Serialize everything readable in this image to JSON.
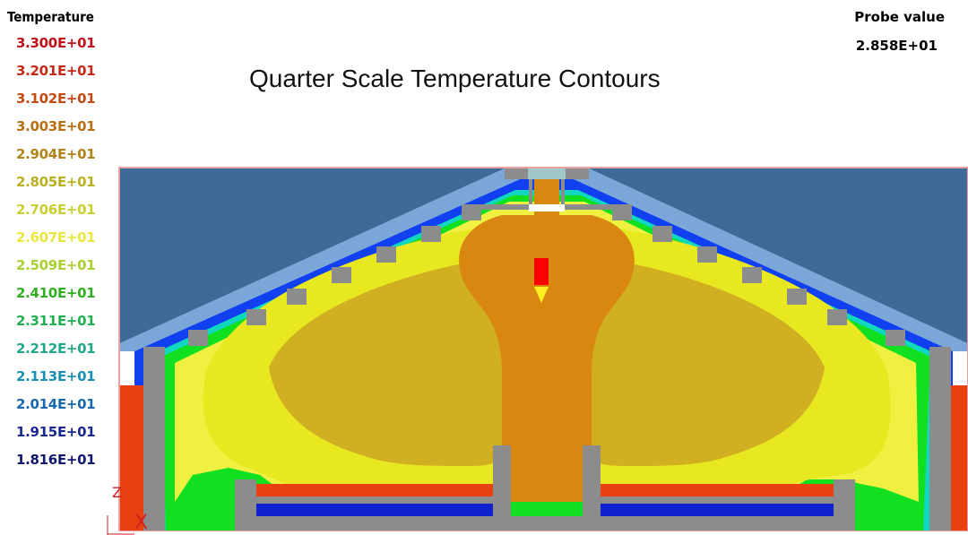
{
  "legend": {
    "title": "Temperature",
    "levels": [
      {
        "label": "3.300E+01",
        "color": "#c0101a"
      },
      {
        "label": "3.201E+01",
        "color": "#c82818"
      },
      {
        "label": "3.102E+01",
        "color": "#c44a14"
      },
      {
        "label": "3.003E+01",
        "color": "#b87014"
      },
      {
        "label": "2.904E+01",
        "color": "#b08418"
      },
      {
        "label": "2.805E+01",
        "color": "#b8b020"
      },
      {
        "label": "2.706E+01",
        "color": "#c8d030"
      },
      {
        "label": "2.607E+01",
        "color": "#e8e840"
      },
      {
        "label": "2.509E+01",
        "color": "#a8d030"
      },
      {
        "label": "2.410E+01",
        "color": "#30b020"
      },
      {
        "label": "2.311E+01",
        "color": "#20b050"
      },
      {
        "label": "2.212E+01",
        "color": "#20a888"
      },
      {
        "label": "2.113E+01",
        "color": "#1890b0"
      },
      {
        "label": "2.014E+01",
        "color": "#1868b0"
      },
      {
        "label": "1.915E+01",
        "color": "#182890"
      },
      {
        "label": "1.816E+01",
        "color": "#101870"
      }
    ]
  },
  "probe": {
    "label": "Probe value",
    "value": "2.858E+01"
  },
  "title": "Quarter Scale Temperature Contours",
  "axes": {
    "z_label": "Z",
    "x_label": "X"
  },
  "colors": {
    "background_sky": "#3e6a96",
    "roof": "#7aa6d8",
    "wall": "#8c8c8c",
    "hot": "#e84010",
    "core": "#d88810",
    "mid": "#d0b020",
    "warm": "#e8e820",
    "yellow": "#f0f040",
    "green": "#10e020",
    "cyan": "#10d8c0",
    "blue": "#1040f0",
    "dark_blue": "#1020d0",
    "probe_red": "#ff0000",
    "probe_yellow": "#ffee20"
  }
}
